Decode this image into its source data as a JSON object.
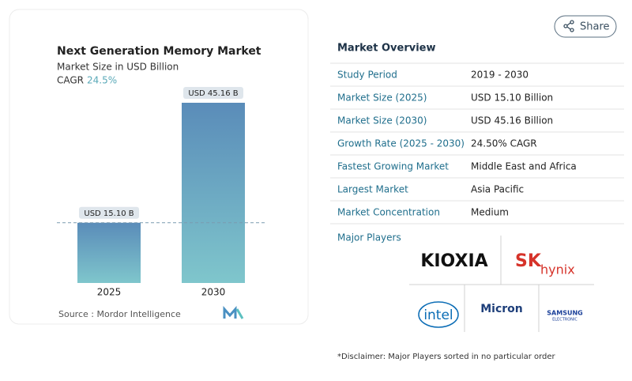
{
  "chart_data": {
    "type": "bar",
    "title": "Next Generation Memory Market",
    "subtitle": "Market Size in USD Billion",
    "cagr_label": "CAGR",
    "cagr": "24.5%",
    "categories": [
      "2025",
      "2030"
    ],
    "values": [
      15.1,
      45.16
    ],
    "value_labels": [
      "USD 15.10 B",
      "USD 45.16 B"
    ],
    "source": "Source :  Mordor Intelligence"
  },
  "share": "Share",
  "overview": {
    "title": "Market Overview",
    "rows": [
      [
        "Study Period",
        "2019 - 2030"
      ],
      [
        "Market Size (2025)",
        "USD 15.10 Billion"
      ],
      [
        "Market Size (2030)",
        "USD 45.16 Billion"
      ],
      [
        "Growth Rate (2025 - 2030)",
        "24.50% CAGR"
      ],
      [
        "Fastest Growing Market",
        "Middle East and Africa"
      ],
      [
        "Largest Market",
        "Asia Pacific"
      ],
      [
        "Market Concentration",
        "Medium"
      ]
    ],
    "players_title": "Major Players",
    "players": [
      "KIOXIA",
      "SK",
      "hynix",
      "intel",
      "Micron",
      "SAMSUNG",
      "ELECTRONIC"
    ],
    "disclaimer": "*Disclaimer: Major Players sorted in no particular order"
  }
}
